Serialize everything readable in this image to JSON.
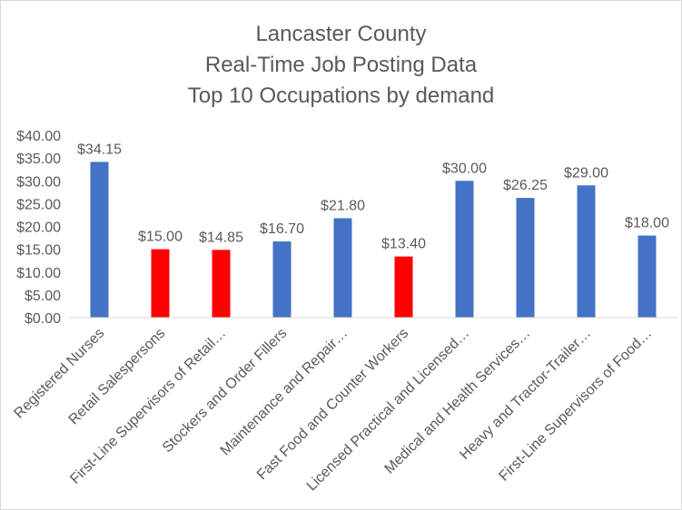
{
  "title_lines": [
    "Lancaster County",
    "Real-Time Job Posting Data",
    "Top 10 Occupations by demand"
  ],
  "colors": {
    "bar_default": "#4472c4",
    "bar_highlight": "#ff0000",
    "axis_text": "#595959",
    "grid": "#d9d9d9"
  },
  "chart_data": {
    "type": "bar",
    "title": "Lancaster County Real-Time Job Posting Data Top 10 Occupations by demand",
    "xlabel": "",
    "ylabel": "",
    "ylim": [
      0,
      40
    ],
    "y_ticks": [
      "$0.00",
      "$5.00",
      "$10.00",
      "$15.00",
      "$20.00",
      "$25.00",
      "$30.00",
      "$35.00",
      "$40.00"
    ],
    "grid": false,
    "legend": "none",
    "categories": [
      "Registered Nurses",
      "Retail Salespersons",
      "First-Line Supervisors of Retail…",
      "Stockers and Order Fillers",
      "Maintenance and Repair…",
      "Fast Food and Counter Workers",
      "Licensed Practical and Licensed…",
      "Medical and Health Services…",
      "Heavy and Tractor-Trailer…",
      "First-Line Supervisors of Food…"
    ],
    "values": [
      34.15,
      15.0,
      14.85,
      16.7,
      21.8,
      13.4,
      30.0,
      26.25,
      29.0,
      18.0
    ],
    "data_labels": [
      "$34.15",
      "$15.00",
      "$14.85",
      "$16.70",
      "$21.80",
      "$13.40",
      "$30.00",
      "$26.25",
      "$29.00",
      "$18.00"
    ],
    "highlighted": [
      false,
      true,
      true,
      false,
      false,
      true,
      false,
      false,
      false,
      false
    ]
  }
}
